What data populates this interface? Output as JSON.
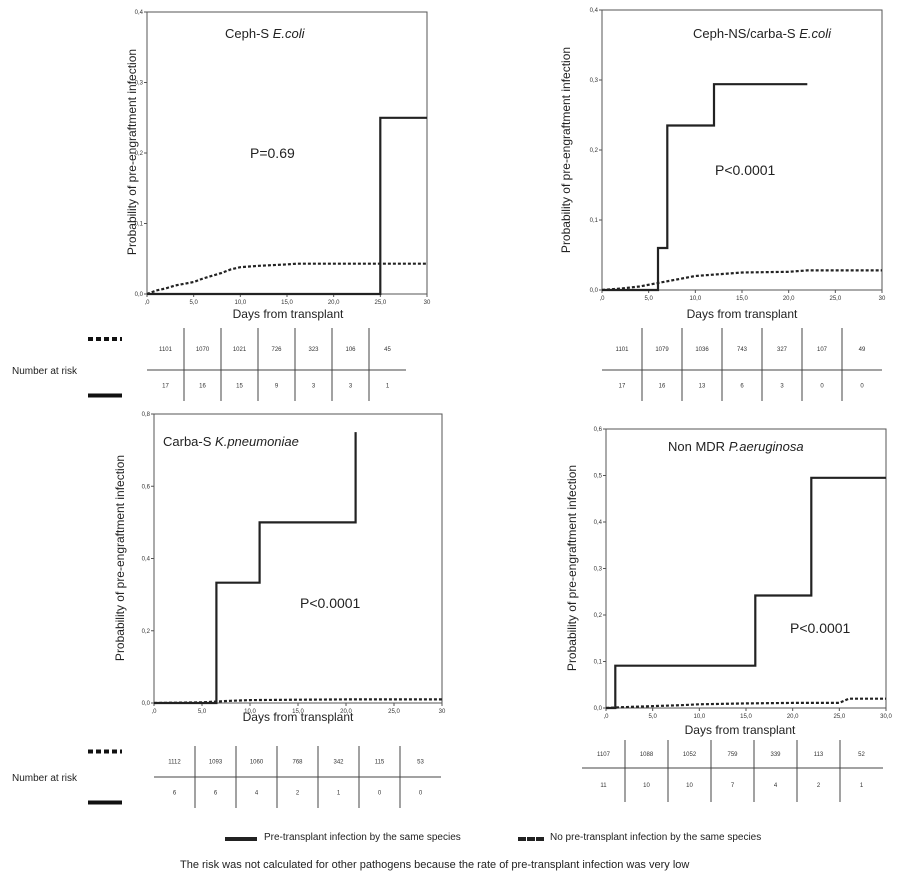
{
  "chart_data": [
    {
      "type": "line",
      "title": "Ceph-S E.coli",
      "title_plain": "Ceph-S ",
      "title_italic": "E.coli",
      "xlabel": "Days from transplant",
      "ylabel": "Probability of pre-engraftment  infection",
      "xlim": [
        0,
        30
      ],
      "ylim": [
        0,
        0.4
      ],
      "xticks": [
        ",0",
        "5,0",
        "10,0",
        "15,0",
        "20,0",
        "25,0",
        "30"
      ],
      "yticks": [
        "0,0",
        "0,1",
        "0,2",
        "0,3",
        "0,4"
      ],
      "annotation": "P=0.69",
      "series": [
        {
          "style": "solid",
          "points": [
            [
              0,
              0
            ],
            [
              25,
              0
            ],
            [
              25,
              0.25
            ],
            [
              30,
              0.25
            ]
          ]
        },
        {
          "style": "dashed",
          "points": [
            [
              0,
              0
            ],
            [
              1,
              0.005
            ],
            [
              2,
              0.008
            ],
            [
              3,
              0.012
            ],
            [
              5,
              0.017
            ],
            [
              6,
              0.022
            ],
            [
              8,
              0.03
            ],
            [
              9,
              0.035
            ],
            [
              10,
              0.038
            ],
            [
              12,
              0.04
            ],
            [
              15,
              0.042
            ],
            [
              16,
              0.043
            ],
            [
              20,
              0.043
            ],
            [
              25,
              0.043
            ],
            [
              30,
              0.043
            ]
          ]
        }
      ],
      "risk_table": {
        "row_label": "Number at risk",
        "dashed": [
          "1101",
          "1070",
          "1021",
          "726",
          "323",
          "106",
          "45"
        ],
        "solid": [
          "17",
          "16",
          "15",
          "9",
          "3",
          "3",
          "1"
        ]
      }
    },
    {
      "type": "line",
      "title": "Ceph-NS/carba-S E.coli",
      "title_plain": "Ceph-NS/carba-S ",
      "title_italic": "E.coli",
      "xlabel": "Days from transplant",
      "ylabel": "Probability of pre-engraftment  infection",
      "xlim": [
        0,
        30
      ],
      "ylim": [
        0,
        0.4
      ],
      "xticks": [
        ",0",
        "5,0",
        "10,0",
        "15,0",
        "20,0",
        "25,0",
        "30"
      ],
      "yticks": [
        "0,0",
        "0,1",
        "0,2",
        "0,3",
        "0,4"
      ],
      "annotation": "P<0.0001",
      "series": [
        {
          "style": "solid",
          "points": [
            [
              0,
              0
            ],
            [
              6,
              0
            ],
            [
              6,
              0.06
            ],
            [
              7,
              0.06
            ],
            [
              7,
              0.235
            ],
            [
              12,
              0.235
            ],
            [
              12,
              0.294
            ],
            [
              22,
              0.294
            ]
          ]
        },
        {
          "style": "dashed",
          "points": [
            [
              0,
              0
            ],
            [
              2,
              0.002
            ],
            [
              4,
              0.005
            ],
            [
              6,
              0.01
            ],
            [
              8,
              0.015
            ],
            [
              10,
              0.02
            ],
            [
              12,
              0.022
            ],
            [
              15,
              0.025
            ],
            [
              20,
              0.026
            ],
            [
              22,
              0.028
            ],
            [
              30,
              0.028
            ]
          ]
        }
      ],
      "risk_table": {
        "row_label": "",
        "dashed": [
          "1101",
          "1079",
          "1036",
          "743",
          "327",
          "107",
          "49"
        ],
        "solid": [
          "17",
          "16",
          "13",
          "6",
          "3",
          "0",
          "0"
        ]
      }
    },
    {
      "type": "line",
      "title": "Carba-S K.pneumoniae",
      "title_plain": "Carba-S ",
      "title_italic": "K.pneumoniae",
      "xlabel": "Days from transplant",
      "ylabel": "Probability of pre-engraftment  infection",
      "xlim": [
        0,
        30
      ],
      "ylim": [
        0,
        0.8
      ],
      "xticks": [
        ",0",
        "5,0",
        "10,0",
        "15,0",
        "20,0",
        "25,0",
        "30"
      ],
      "yticks": [
        "0,0",
        "0,2",
        "0,4",
        "0,6",
        "0,8"
      ],
      "annotation": "P<0.0001",
      "series": [
        {
          "style": "solid",
          "points": [
            [
              0,
              0
            ],
            [
              6.5,
              0
            ],
            [
              6.5,
              0.333
            ],
            [
              11,
              0.333
            ],
            [
              11,
              0.5
            ],
            [
              21,
              0.5
            ],
            [
              21,
              0.75
            ]
          ]
        },
        {
          "style": "dashed",
          "points": [
            [
              0,
              0
            ],
            [
              5,
              0.002
            ],
            [
              8,
              0.006
            ],
            [
              10,
              0.008
            ],
            [
              15,
              0.009
            ],
            [
              20,
              0.01
            ],
            [
              30,
              0.01
            ]
          ]
        }
      ],
      "risk_table": {
        "row_label": "Number at risk",
        "dashed": [
          "1112",
          "1093",
          "1060",
          "768",
          "342",
          "115",
          "53"
        ],
        "solid": [
          "6",
          "6",
          "4",
          "2",
          "1",
          "0",
          "0"
        ]
      }
    },
    {
      "type": "line",
      "title": "Non MDR P.aeruginosa",
      "title_plain": "Non MDR ",
      "title_italic": "P.aeruginosa",
      "xlabel": "Days from transplant",
      "ylabel": "Probability of pre-engraftment  infection",
      "xlim": [
        0,
        30
      ],
      "ylim": [
        0,
        0.6
      ],
      "xticks": [
        ",0",
        "5,0",
        "10,0",
        "15,0",
        "20,0",
        "25,0",
        "30,0"
      ],
      "yticks": [
        "0,0",
        "0,1",
        "0,2",
        "0,3",
        "0,4",
        "0,5",
        "0,6"
      ],
      "annotation": "P<0.0001",
      "series": [
        {
          "style": "solid",
          "points": [
            [
              0,
              0
            ],
            [
              1,
              0
            ],
            [
              1,
              0.091
            ],
            [
              16,
              0.091
            ],
            [
              16,
              0.242
            ],
            [
              22,
              0.242
            ],
            [
              22,
              0.495
            ],
            [
              30,
              0.495
            ]
          ]
        },
        {
          "style": "dashed",
          "points": [
            [
              0,
              0
            ],
            [
              2,
              0.002
            ],
            [
              5,
              0.004
            ],
            [
              8,
              0.006
            ],
            [
              10,
              0.008
            ],
            [
              15,
              0.01
            ],
            [
              20,
              0.011
            ],
            [
              25,
              0.011
            ],
            [
              26,
              0.02
            ],
            [
              30,
              0.02
            ]
          ]
        }
      ],
      "risk_table": {
        "row_label": "",
        "dashed": [
          "1107",
          "1088",
          "1052",
          "759",
          "339",
          "113",
          "52"
        ],
        "solid": [
          "11",
          "10",
          "10",
          "7",
          "4",
          "2",
          "1"
        ]
      }
    }
  ],
  "legend": {
    "solid_label": "Pre-transplant infection by the same species",
    "dashed_label": "No pre-transplant infection by the same species"
  },
  "footnote": "The risk was not calculated for other pathogens because the rate of pre-transplant infection was very low"
}
